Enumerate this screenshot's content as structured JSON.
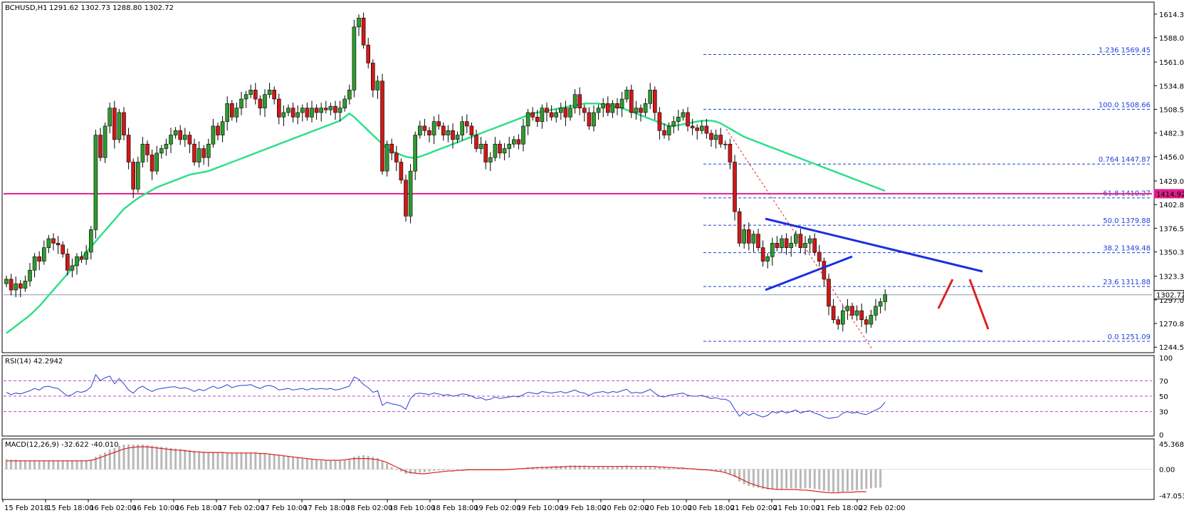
{
  "header": {
    "symbol": "BCHUSD,H1",
    "ohlc": "1291.62 1302.73 1288.80 1302.72"
  },
  "colors": {
    "bull": "#2e9b2e",
    "bear": "#d01818",
    "ma": "#2fe08a",
    "level_line": "#e0208a",
    "fib": "#1f3fd8",
    "trend": "#1a2fe0",
    "rsi": "#2a40d0",
    "macd_signal": "#e02020",
    "macd_hist": "#b8b8b8",
    "arrow": "#e02020"
  },
  "chart_data": [
    {
      "type": "candlestick",
      "title": "BCHUSD,H1",
      "y_range": [
        1240,
        1626
      ],
      "y_ticks": [
        1614.3,
        1588.05,
        1561.05,
        1534.8,
        1508.55,
        1482.3,
        1456.05,
        1429.05,
        1402.8,
        1376.55,
        1350.3,
        1323.3,
        1297.05,
        1270.8,
        1244.55
      ],
      "y_tick_labels": [
        "1614.30",
        "1588.05",
        "1561.05",
        "1534.80",
        "1508.55",
        "1482.30",
        "1456.05",
        "1429.05",
        "1402.80",
        "1376.55",
        "1350.30",
        "1323.30",
        "1297.05",
        "1270.80",
        "1244.55"
      ],
      "x_tick_labels": [
        "15 Feb 2018",
        "15 Feb 18:00",
        "16 Feb 02:00",
        "16 Feb 10:00",
        "16 Feb 18:00",
        "17 Feb 02:00",
        "17 Feb 10:00",
        "17 Feb 18:00",
        "18 Feb 02:00",
        "18 Feb 10:00",
        "18 Feb 18:00",
        "19 Feb 02:00",
        "19 Feb 10:00",
        "19 Feb 18:00",
        "20 Feb 02:00",
        "20 Feb 10:00",
        "20 Feb 18:00",
        "21 Feb 02:00",
        "21 Feb 10:00",
        "21 Feb 18:00",
        "22 Feb 02:00"
      ],
      "closes": [
        1320,
        1308,
        1315,
        1310,
        1318,
        1330,
        1345,
        1340,
        1355,
        1365,
        1360,
        1358,
        1348,
        1330,
        1335,
        1345,
        1342,
        1350,
        1375,
        1480,
        1455,
        1490,
        1510,
        1475,
        1505,
        1480,
        1450,
        1420,
        1450,
        1470,
        1458,
        1440,
        1460,
        1465,
        1470,
        1480,
        1485,
        1475,
        1480,
        1470,
        1450,
        1465,
        1455,
        1470,
        1490,
        1480,
        1495,
        1515,
        1500,
        1510,
        1520,
        1525,
        1530,
        1520,
        1510,
        1525,
        1530,
        1520,
        1500,
        1505,
        1510,
        1500,
        1505,
        1510,
        1500,
        1510,
        1505,
        1510,
        1508,
        1512,
        1505,
        1510,
        1520,
        1530,
        1600,
        1610,
        1580,
        1560,
        1530,
        1540,
        1440,
        1470,
        1460,
        1450,
        1430,
        1390,
        1440,
        1480,
        1490,
        1485,
        1480,
        1495,
        1490,
        1480,
        1485,
        1475,
        1480,
        1495,
        1490,
        1480,
        1465,
        1470,
        1450,
        1455,
        1470,
        1460,
        1465,
        1470,
        1475,
        1470,
        1490,
        1505,
        1500,
        1495,
        1510,
        1505,
        1500,
        1505,
        1510,
        1500,
        1510,
        1525,
        1510,
        1505,
        1490,
        1505,
        1510,
        1515,
        1505,
        1515,
        1510,
        1520,
        1530,
        1505,
        1510,
        1505,
        1515,
        1530,
        1505,
        1485,
        1480,
        1490,
        1495,
        1500,
        1505,
        1490,
        1488,
        1485,
        1490,
        1482,
        1475,
        1480,
        1470,
        1470,
        1450,
        1395,
        1360,
        1375,
        1360,
        1370,
        1355,
        1340,
        1345,
        1360,
        1355,
        1365,
        1355,
        1360,
        1370,
        1355,
        1360,
        1365,
        1350,
        1340,
        1320,
        1290,
        1275,
        1270,
        1285,
        1290,
        1280,
        1285,
        1275,
        1270,
        1280,
        1290,
        1295,
        1302.72
      ]
    },
    {
      "type": "line",
      "title": "RSI(14) 42.2942",
      "y_range": [
        0,
        100
      ],
      "levels": [
        70,
        50,
        30
      ],
      "y_tick_labels": [
        "100",
        "70",
        "50",
        "30",
        "0"
      ],
      "series": [
        {
          "values": [
            55,
            52,
            54,
            53,
            55,
            57,
            60,
            58,
            62,
            63,
            61,
            60,
            55,
            50,
            52,
            56,
            55,
            57,
            62,
            78,
            70,
            74,
            76,
            66,
            73,
            66,
            58,
            54,
            60,
            63,
            59,
            56,
            59,
            60,
            61,
            62,
            62,
            60,
            61,
            59,
            56,
            59,
            57,
            60,
            63,
            60,
            62,
            65,
            61,
            63,
            64,
            64,
            65,
            62,
            60,
            63,
            64,
            62,
            58,
            59,
            60,
            58,
            59,
            60,
            58,
            60,
            59,
            60,
            59,
            60,
            58,
            59,
            61,
            63,
            75,
            72,
            65,
            61,
            55,
            57,
            38,
            42,
            40,
            39,
            37,
            33,
            47,
            53,
            54,
            53,
            52,
            54,
            53,
            51,
            52,
            50,
            51,
            53,
            52,
            50,
            47,
            48,
            45,
            46,
            49,
            47,
            48,
            49,
            50,
            49,
            52,
            55,
            54,
            53,
            56,
            55,
            54,
            55,
            56,
            54,
            56,
            58,
            55,
            54,
            51,
            54,
            55,
            56,
            54,
            56,
            55,
            57,
            59,
            54,
            55,
            54,
            56,
            59,
            54,
            50,
            49,
            51,
            52,
            53,
            54,
            51,
            50,
            50,
            51,
            49,
            47,
            48,
            46,
            46,
            43,
            33,
            24,
            29,
            25,
            28,
            25,
            23,
            25,
            30,
            28,
            31,
            28,
            30,
            32,
            28,
            30,
            31,
            28,
            26,
            23,
            21,
            22,
            23,
            28,
            30,
            28,
            29,
            27,
            26,
            29,
            32,
            35,
            42.29
          ]
        }
      ]
    },
    {
      "type": "bar",
      "title": "MACD(12,26,9) -32.622 -40.010",
      "y_range": [
        -50,
        49
      ],
      "y_ticks": [
        45.368,
        0.0,
        -47.053
      ],
      "y_tick_labels": [
        "45.368",
        "0.00",
        "-47.053"
      ],
      "series": [
        {
          "name": "",
          "values": [
            18,
            17,
            17,
            16,
            16,
            16,
            16,
            16,
            16,
            16,
            16,
            16,
            16,
            16,
            16,
            16,
            16,
            16,
            17,
            22,
            26,
            30,
            35,
            38,
            42,
            44,
            44,
            44,
            44,
            44,
            43,
            42,
            41,
            40,
            39,
            38,
            37,
            36,
            35,
            34,
            33,
            32,
            31,
            30,
            30,
            30,
            30,
            30,
            30,
            30,
            30,
            30,
            30,
            30,
            29,
            28,
            27,
            26,
            25,
            24,
            23,
            22,
            21,
            20,
            19,
            18,
            17,
            16,
            15,
            15,
            15,
            15,
            16,
            18,
            22,
            24,
            25,
            24,
            22,
            20,
            14,
            10,
            4,
            0,
            -4,
            -8,
            -8,
            -7,
            -6,
            -5,
            -4,
            -3,
            -2,
            -2,
            -1,
            -1,
            -1,
            0,
            0,
            0,
            -1,
            -1,
            -1,
            -1,
            0,
            0,
            0,
            0,
            1,
            1,
            2,
            3,
            4,
            4,
            5,
            5,
            5,
            6,
            6,
            6,
            7,
            7,
            7,
            7,
            6,
            6,
            6,
            6,
            6,
            6,
            6,
            6,
            7,
            6,
            6,
            6,
            6,
            6,
            5,
            4,
            3,
            3,
            2,
            2,
            2,
            1,
            0,
            -1,
            -1,
            -2,
            -2,
            -3,
            -4,
            -6,
            -8,
            -14,
            -22,
            -27,
            -30,
            -32,
            -33,
            -35,
            -36,
            -36,
            -35,
            -35,
            -34,
            -34,
            -34,
            -35,
            -34,
            -34,
            -35,
            -36,
            -38,
            -40,
            -41,
            -41,
            -40,
            -39,
            -38,
            -37,
            -36,
            -35,
            -34,
            -33,
            -32.62
          ]
        },
        {
          "name": "",
          "values": [
            15,
            15,
            15,
            15,
            15,
            15,
            15,
            15,
            15,
            15,
            15,
            15,
            15,
            15,
            15,
            15,
            15,
            15,
            16,
            18,
            21,
            24,
            27,
            30,
            33,
            36,
            38,
            39,
            40,
            40,
            40,
            39,
            38,
            37,
            36,
            35,
            34,
            34,
            33,
            32,
            31,
            31,
            30,
            30,
            30,
            30,
            30,
            29,
            29,
            29,
            29,
            29,
            29,
            29,
            28,
            28,
            27,
            26,
            25,
            24,
            23,
            22,
            21,
            20,
            19,
            18,
            17,
            17,
            16,
            16,
            16,
            16,
            17,
            18,
            19,
            19,
            19,
            19,
            18,
            17,
            15,
            12,
            8,
            4,
            0,
            -4,
            -6,
            -7,
            -8,
            -8,
            -7,
            -6,
            -5,
            -4,
            -3,
            -3,
            -2,
            -2,
            -1,
            -1,
            -1,
            -1,
            -1,
            -1,
            -1,
            -1,
            -1,
            0,
            0,
            1,
            1,
            2,
            2,
            3,
            3,
            3,
            4,
            4,
            4,
            5,
            5,
            5,
            5,
            5,
            5,
            5,
            5,
            5,
            5,
            5,
            5,
            5,
            5,
            5,
            5,
            5,
            5,
            5,
            5,
            4,
            4,
            3,
            3,
            2,
            2,
            1,
            1,
            0,
            -1,
            -1,
            -2,
            -3,
            -4,
            -6,
            -9,
            -12,
            -16,
            -20,
            -24,
            -27,
            -30,
            -32,
            -34,
            -35,
            -36,
            -36,
            -36,
            -36,
            -36,
            -37,
            -37,
            -38,
            -39,
            -40,
            -41,
            -42,
            -42,
            -42,
            -41,
            -41,
            -41,
            -40,
            -40,
            -40.01
          ]
        }
      ]
    }
  ],
  "moving_average": {
    "values": [
      1260,
      1264,
      1268,
      1272,
      1276,
      1280,
      1285,
      1290,
      1296,
      1302,
      1308,
      1314,
      1320,
      1326,
      1332,
      1338,
      1344,
      1350,
      1356,
      1362,
      1368,
      1374,
      1380,
      1386,
      1392,
      1398,
      1402,
      1406,
      1410,
      1413,
      1416,
      1419,
      1422,
      1424,
      1426,
      1428,
      1430,
      1432,
      1434,
      1436,
      1437,
      1438,
      1439,
      1440,
      1442,
      1444,
      1446,
      1448,
      1450,
      1452,
      1454,
      1456,
      1458,
      1460,
      1462,
      1464,
      1466,
      1468,
      1470,
      1472,
      1474,
      1476,
      1478,
      1480,
      1482,
      1484,
      1486,
      1488,
      1490,
      1492,
      1494,
      1496,
      1500,
      1504,
      1500,
      1495,
      1490,
      1485,
      1480,
      1475,
      1470,
      1465,
      1462,
      1460,
      1458,
      1456,
      1455,
      1455,
      1456,
      1458,
      1460,
      1462,
      1464,
      1466,
      1468,
      1470,
      1472,
      1474,
      1476,
      1478,
      1480,
      1482,
      1484,
      1486,
      1488,
      1490,
      1492,
      1494,
      1496,
      1498,
      1500,
      1502,
      1504,
      1505,
      1506,
      1507,
      1508,
      1509,
      1510,
      1511,
      1512,
      1513,
      1514,
      1515,
      1515,
      1515,
      1515,
      1514,
      1513,
      1512,
      1511,
      1510,
      1508,
      1506,
      1504,
      1502,
      1500,
      1498,
      1496,
      1494,
      1492,
      1490,
      1490,
      1491,
      1492,
      1493,
      1494,
      1495,
      1496,
      1496,
      1496,
      1495,
      1493,
      1490,
      1487,
      1484,
      1481,
      1478,
      1476,
      1474,
      1472,
      1470,
      1468,
      1466,
      1464,
      1462,
      1460,
      1458,
      1456,
      1454,
      1452,
      1450,
      1448,
      1446,
      1444,
      1442,
      1440,
      1438,
      1436,
      1434,
      1432,
      1430,
      1428,
      1426,
      1424,
      1422,
      1420,
      1418
    ]
  },
  "horizontal_level": {
    "value": 1414.92,
    "label": "1414.92"
  },
  "current_price": {
    "value": 1302.72,
    "label": "1302.72"
  },
  "fib_levels": [
    {
      "value": 1569.45,
      "label": "1.236  1569.45"
    },
    {
      "value": 1508.66,
      "label": "100.0  1508.66"
    },
    {
      "value": 1447.87,
      "label": "0.764  1447.87"
    },
    {
      "value": 1410.27,
      "label": "61.8  1410.27"
    },
    {
      "value": 1379.88,
      "label": "50.0  1379.88"
    },
    {
      "value": 1349.48,
      "label": "38.2  1349.48"
    },
    {
      "value": 1311.88,
      "label": "23.6  1311.88"
    },
    {
      "value": 1251.09,
      "label": "0.0  1251.09"
    }
  ]
}
